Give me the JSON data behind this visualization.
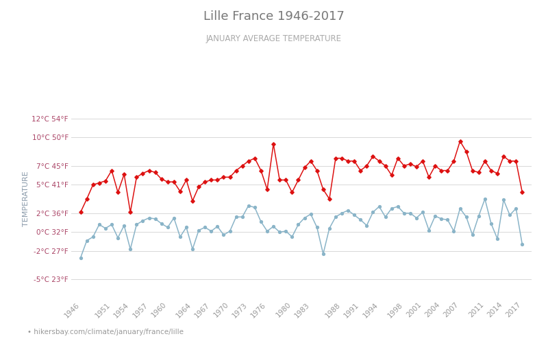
{
  "title": "Lille France 1946-2017",
  "subtitle": "JANUARY AVERAGE TEMPERATURE",
  "ylabel": "TEMPERATURE",
  "footer": "hikersbay.com/climate/january/france/lille",
  "bg_color": "#ffffff",
  "grid_color": "#d8d8d8",
  "night_color": "#8ab4c8",
  "day_color": "#dd1111",
  "title_color": "#777777",
  "subtitle_color": "#aaaaaa",
  "ylabel_color": "#8a9aaa",
  "ytick_color": "#aa4466",
  "xtick_color": "#999999",
  "years": [
    1946,
    1947,
    1948,
    1949,
    1950,
    1951,
    1952,
    1953,
    1954,
    1955,
    1956,
    1957,
    1958,
    1959,
    1960,
    1961,
    1962,
    1963,
    1964,
    1965,
    1966,
    1967,
    1968,
    1969,
    1970,
    1971,
    1972,
    1973,
    1974,
    1975,
    1976,
    1977,
    1978,
    1979,
    1980,
    1981,
    1982,
    1983,
    1984,
    1985,
    1986,
    1987,
    1988,
    1989,
    1990,
    1991,
    1992,
    1993,
    1994,
    1995,
    1996,
    1997,
    1998,
    1999,
    2000,
    2001,
    2002,
    2003,
    2004,
    2005,
    2006,
    2007,
    2008,
    2009,
    2010,
    2011,
    2012,
    2013,
    2014,
    2015,
    2016,
    2017
  ],
  "night": [
    -2.7,
    -0.9,
    -0.5,
    0.8,
    0.4,
    0.8,
    -0.6,
    0.7,
    -1.8,
    0.8,
    1.2,
    1.5,
    1.4,
    0.9,
    0.5,
    1.5,
    -0.5,
    0.5,
    -1.8,
    0.2,
    0.5,
    0.1,
    0.6,
    -0.3,
    0.1,
    1.6,
    1.6,
    2.8,
    2.6,
    1.1,
    0.1,
    0.6,
    0.0,
    0.1,
    -0.5,
    0.8,
    1.5,
    1.9,
    0.5,
    -2.3,
    0.4,
    1.6,
    2.0,
    2.3,
    1.8,
    1.3,
    0.7,
    2.1,
    2.7,
    1.6,
    2.5,
    2.7,
    2.0,
    2.0,
    1.5,
    2.1,
    0.2,
    1.7,
    1.4,
    1.3,
    0.1,
    2.5,
    1.6,
    -0.3,
    1.7,
    3.5,
    0.9,
    -0.7,
    3.4,
    1.8,
    2.5,
    -1.3
  ],
  "day": [
    2.1,
    3.5,
    5.0,
    5.2,
    5.4,
    6.5,
    4.2,
    6.1,
    2.1,
    5.8,
    6.2,
    6.5,
    6.3,
    5.6,
    5.3,
    5.3,
    4.3,
    5.5,
    3.3,
    4.8,
    5.3,
    5.5,
    5.5,
    5.8,
    5.8,
    6.5,
    7.0,
    7.5,
    7.8,
    6.5,
    4.5,
    9.3,
    5.5,
    5.5,
    4.2,
    5.5,
    6.8,
    7.5,
    6.5,
    4.5,
    3.5,
    7.8,
    7.8,
    7.5,
    7.5,
    6.5,
    7.0,
    8.0,
    7.5,
    7.0,
    6.0,
    7.8,
    7.0,
    7.2,
    6.9,
    7.5,
    5.8,
    7.0,
    6.5,
    6.5,
    7.5,
    9.6,
    8.5,
    6.5,
    6.3,
    7.5,
    6.5,
    6.2,
    8.0,
    7.5,
    7.5,
    4.2
  ],
  "yticks_c": [
    -5,
    -2,
    0,
    2,
    5,
    7,
    10,
    12
  ],
  "yticks_f": [
    23,
    27,
    32,
    36,
    41,
    45,
    50,
    54
  ],
  "xtick_years": [
    1946,
    1951,
    1954,
    1957,
    1960,
    1964,
    1967,
    1970,
    1973,
    1976,
    1980,
    1983,
    1988,
    1991,
    1994,
    1998,
    2001,
    2004,
    2007,
    2011,
    2014,
    2017
  ],
  "xlim": [
    1944.5,
    2018.5
  ],
  "ylim": [
    -7.0,
    14.0
  ]
}
